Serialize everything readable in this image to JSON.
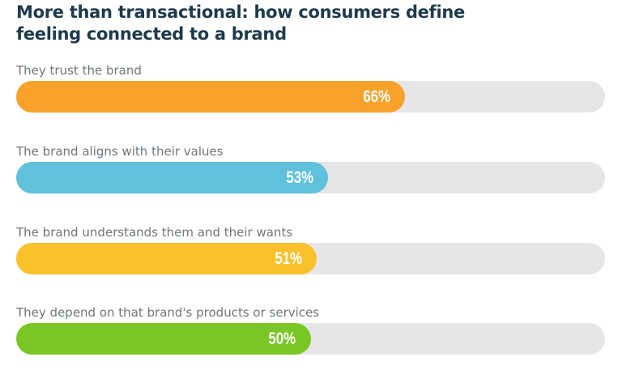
{
  "chart_data": {
    "type": "bar",
    "orientation": "horizontal",
    "title": "More than transactional: how consumers define feeling connected to a brand",
    "xlim": [
      0,
      100
    ],
    "categories": [
      "They trust the brand",
      "The brand aligns with their values",
      "The brand understands them and their wants",
      "They depend on that brand's products or services"
    ],
    "values": [
      66,
      53,
      51,
      50
    ],
    "value_labels": [
      "66%",
      "53%",
      "51%",
      "50%"
    ],
    "colors": [
      "#F8A22A",
      "#5FC1DC",
      "#FBC12D",
      "#7AC626"
    ],
    "track_color": "#E6E6E6",
    "grid": false
  }
}
